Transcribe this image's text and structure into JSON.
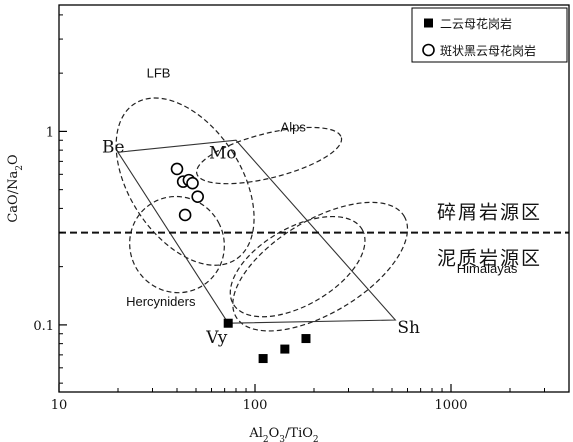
{
  "chart_data": {
    "type": "scatter",
    "xlabel": "Al2O3/TiO2",
    "ylabel": "CaO/Na2O",
    "x_scale": "log",
    "y_scale": "log",
    "xlim": [
      10,
      4000
    ],
    "ylim": [
      0.045,
      4.5
    ],
    "x_ticks": [
      10,
      100,
      1000
    ],
    "x_tick_labels": [
      "10",
      "100",
      "1000"
    ],
    "y_ticks": [
      0.1,
      1
    ],
    "y_tick_labels": [
      "0.1",
      "1"
    ],
    "legend_position": "top-right",
    "series": [
      {
        "name": "二云母花岗岩",
        "marker": "filled-square",
        "points": [
          [
            73,
            0.102
          ],
          [
            110,
            0.067
          ],
          [
            142,
            0.075
          ],
          [
            182,
            0.085
          ]
        ]
      },
      {
        "name": "斑状黑云母花岗岩",
        "marker": "open-circle",
        "points": [
          [
            40,
            0.64
          ],
          [
            43,
            0.55
          ],
          [
            46,
            0.56
          ],
          [
            48,
            0.54
          ],
          [
            51,
            0.46
          ],
          [
            44,
            0.37
          ]
        ]
      }
    ],
    "divider": {
      "y": 0.3,
      "style": "dashed",
      "upper_label": "碎屑岩源区",
      "lower_label": "泥质岩源区"
    },
    "mixing_polygon": {
      "vertices": [
        {
          "label": "Be",
          "x": 20,
          "y": 0.78
        },
        {
          "label": "Mo",
          "x": 80,
          "y": 0.9
        },
        {
          "label": "Sh",
          "x": 520,
          "y": 0.106
        },
        {
          "label": "Vy",
          "x": 73,
          "y": 0.102
        }
      ]
    },
    "fields": [
      {
        "label": "LFB",
        "center": [
          44,
          0.55
        ],
        "rx_log": 0.285,
        "ry_log": 0.48,
        "angle": -33,
        "label_at": [
          28,
          1.9
        ]
      },
      {
        "label": "Alps",
        "center": [
          118,
          0.75
        ],
        "rx_log": 0.38,
        "ry_log": 0.115,
        "angle": -14,
        "label_at": [
          135,
          1.0
        ]
      },
      {
        "label": "Hercyniders",
        "center": [
          40,
          0.26
        ],
        "rx_log": 0.24,
        "ry_log": 0.25,
        "angle": -28,
        "label_at": [
          22,
          0.125
        ]
      },
      {
        "label": "Himalayas",
        "center": [
          215,
          0.2
        ],
        "rx_log": 0.5,
        "ry_log": 0.24,
        "angle": -31,
        "label_at": [
          1070,
          0.185
        ]
      },
      {
        "label": "",
        "center": [
          165,
          0.2
        ],
        "rx_log": 0.38,
        "ry_log": 0.2,
        "angle": -30
      }
    ]
  }
}
